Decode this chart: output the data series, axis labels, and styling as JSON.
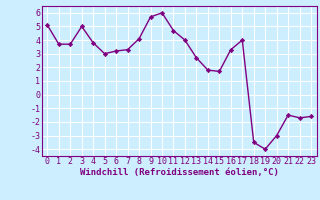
{
  "x": [
    0,
    1,
    2,
    3,
    4,
    5,
    6,
    7,
    8,
    9,
    10,
    11,
    12,
    13,
    14,
    15,
    16,
    17,
    18,
    19,
    20,
    21,
    22,
    23
  ],
  "y": [
    5.1,
    3.7,
    3.7,
    5.0,
    3.8,
    3.0,
    3.2,
    3.3,
    4.1,
    5.7,
    6.0,
    4.7,
    4.0,
    2.7,
    1.8,
    1.7,
    3.3,
    4.0,
    -3.5,
    -4.0,
    -3.0,
    -1.5,
    -1.7,
    -1.6
  ],
  "line_color": "#800080",
  "marker": "D",
  "marker_size": 2.2,
  "linewidth": 1.0,
  "xlabel": "Windchill (Refroidissement éolien,°C)",
  "xlabel_fontsize": 6.5,
  "bg_color": "#cceeff",
  "grid_color": "#ffffff",
  "ylim": [
    -4.5,
    6.5
  ],
  "xlim": [
    -0.5,
    23.5
  ],
  "yticks": [
    -4,
    -3,
    -2,
    -1,
    0,
    1,
    2,
    3,
    4,
    5,
    6
  ],
  "xticks": [
    0,
    1,
    2,
    3,
    4,
    5,
    6,
    7,
    8,
    9,
    10,
    11,
    12,
    13,
    14,
    15,
    16,
    17,
    18,
    19,
    20,
    21,
    22,
    23
  ],
  "tick_fontsize": 6.0,
  "spine_color": "#800080"
}
